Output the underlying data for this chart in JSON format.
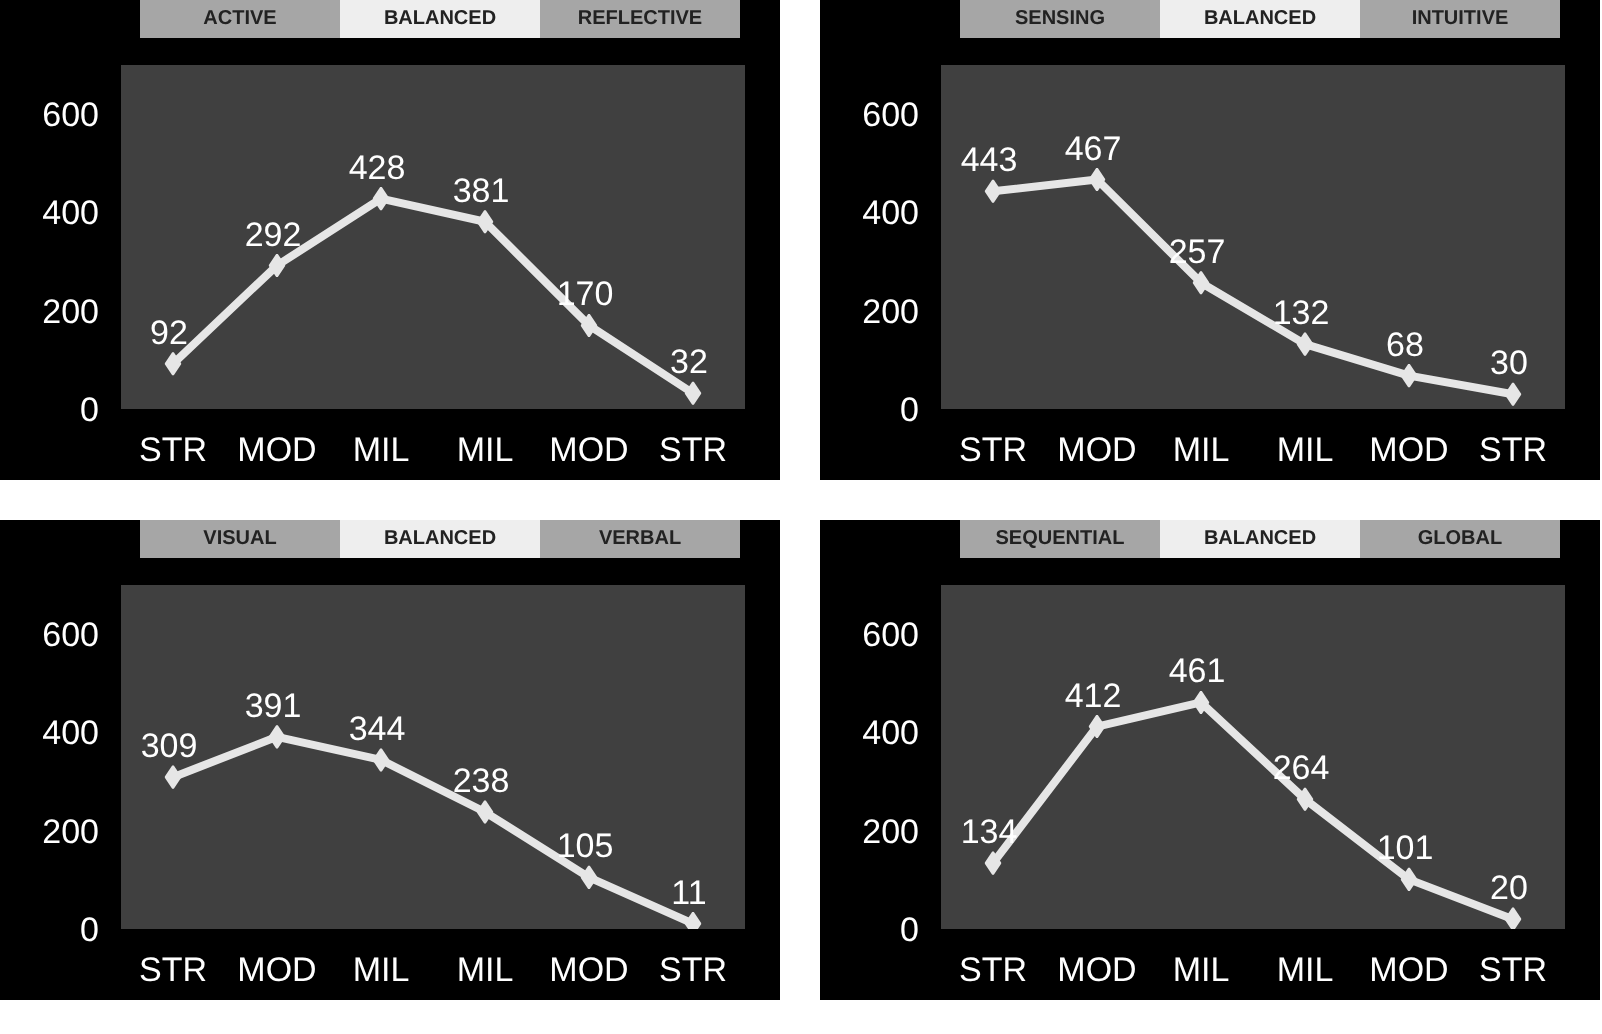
{
  "chart_data": [
    {
      "type": "line",
      "categories": [
        "STR",
        "MOD",
        "MIL",
        "MIL",
        "MOD",
        "STR"
      ],
      "series": [
        {
          "color": "#e6e6e6",
          "values": [
            92,
            292,
            428,
            381,
            170,
            32
          ]
        }
      ],
      "ylim": [
        0,
        700
      ],
      "yticks": [
        0,
        200,
        400,
        600
      ],
      "data_labels": true,
      "marker": "diamond",
      "grid": false,
      "annotations": [
        "ACTIVE",
        "BALANCED",
        "REFLECTIVE"
      ]
    },
    {
      "type": "line",
      "categories": [
        "STR",
        "MOD",
        "MIL",
        "MIL",
        "MOD",
        "STR"
      ],
      "series": [
        {
          "color": "#e6e6e6",
          "values": [
            443,
            467,
            257,
            132,
            68,
            30
          ]
        }
      ],
      "ylim": [
        0,
        700
      ],
      "yticks": [
        0,
        200,
        400,
        600
      ],
      "data_labels": true,
      "marker": "diamond",
      "grid": false,
      "annotations": [
        "SENSING",
        "BALANCED",
        "INTUITIVE"
      ]
    },
    {
      "type": "line",
      "categories": [
        "STR",
        "MOD",
        "MIL",
        "MIL",
        "MOD",
        "STR"
      ],
      "series": [
        {
          "color": "#e6e6e6",
          "values": [
            309,
            391,
            344,
            238,
            105,
            11
          ]
        }
      ],
      "ylim": [
        0,
        700
      ],
      "yticks": [
        0,
        200,
        400,
        600
      ],
      "data_labels": true,
      "marker": "diamond",
      "grid": false,
      "annotations": [
        "VISUAL",
        "BALANCED",
        "VERBAL"
      ]
    },
    {
      "type": "line",
      "categories": [
        "STR",
        "MOD",
        "MIL",
        "MIL",
        "MOD",
        "STR"
      ],
      "series": [
        {
          "color": "#e6e6e6",
          "values": [
            134,
            412,
            461,
            264,
            101,
            20
          ]
        }
      ],
      "ylim": [
        0,
        700
      ],
      "yticks": [
        0,
        200,
        400,
        600
      ],
      "data_labels": true,
      "marker": "diamond",
      "grid": false,
      "annotations": [
        "SEQUENTIAL",
        "BALANCED",
        "GLOBAL"
      ]
    }
  ]
}
